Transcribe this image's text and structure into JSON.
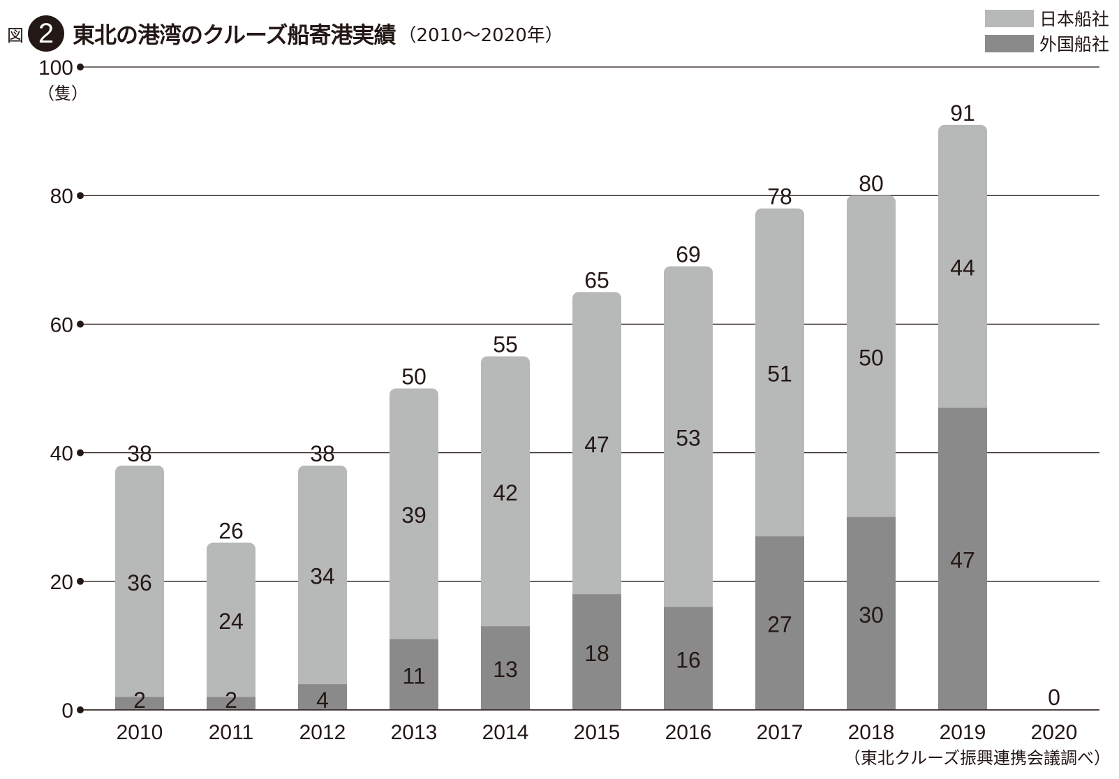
{
  "header": {
    "fig_label": "図",
    "fig_number": "2",
    "title": "東北の港湾のクルーズ船寄港実績",
    "subtitle": "（2010〜2020年）"
  },
  "legend": [
    {
      "label": "日本船社",
      "color": "#b7b8b8"
    },
    {
      "label": "外国船社",
      "color": "#8a8a8a"
    }
  ],
  "unit_label": "（隻）",
  "source": "（東北クルーズ振興連携会議調べ）",
  "chart_data": {
    "type": "bar",
    "stacked": true,
    "categories": [
      "2010",
      "2011",
      "2012",
      "2013",
      "2014",
      "2015",
      "2016",
      "2017",
      "2018",
      "2019",
      "2020"
    ],
    "series": [
      {
        "name": "外国船社",
        "color": "#8a8a8a",
        "values": [
          2,
          2,
          4,
          11,
          13,
          18,
          16,
          27,
          30,
          47,
          0
        ]
      },
      {
        "name": "日本船社",
        "color": "#b7b8b8",
        "values": [
          36,
          24,
          34,
          39,
          42,
          47,
          53,
          51,
          50,
          44,
          0
        ]
      }
    ],
    "totals": [
      38,
      26,
      38,
      50,
      55,
      65,
      69,
      78,
      80,
      91,
      0
    ],
    "yticks": [
      0,
      20,
      40,
      60,
      80,
      100
    ],
    "ylim": [
      0,
      100
    ],
    "grid": true,
    "legend_position": "top-right"
  }
}
